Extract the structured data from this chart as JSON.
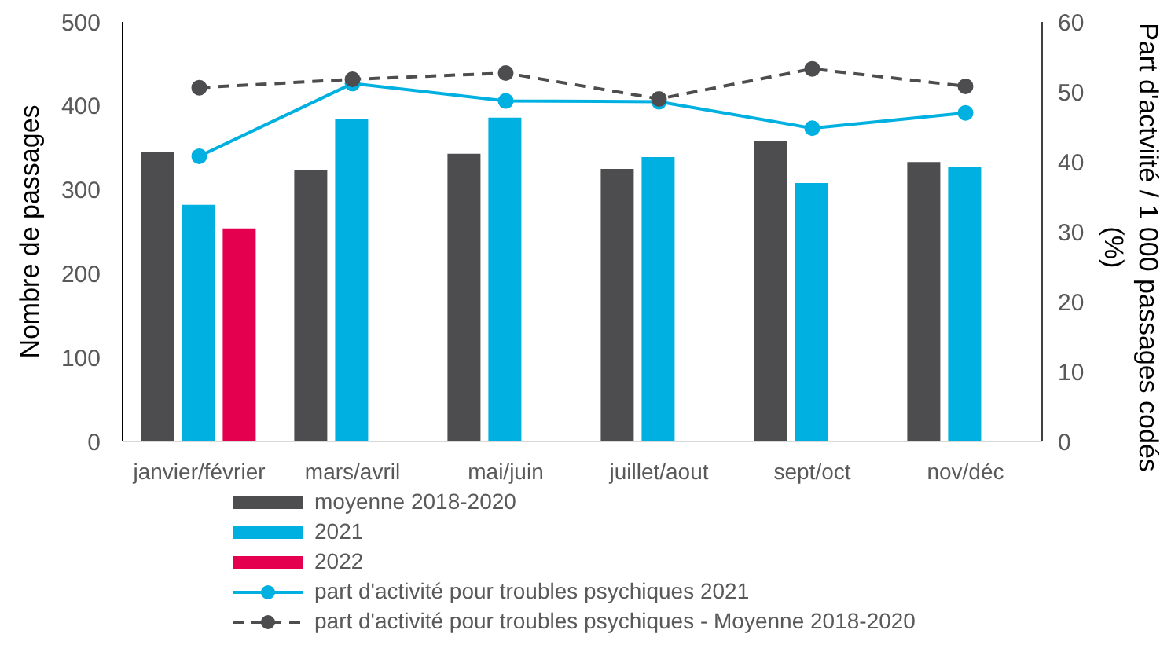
{
  "chart_data": {
    "type": "bar",
    "categories": [
      "janvier/février",
      "mars/avril",
      "mai/juin",
      "juillet/aout",
      "sept/oct",
      "nov/déc"
    ],
    "series": [
      {
        "name": "moyenne 2018-2020",
        "color": "#4d4d4f",
        "values": [
          345,
          324,
          343,
          325,
          358,
          333
        ]
      },
      {
        "name": "2021",
        "color": "#00b0e0",
        "values": [
          282,
          384,
          386,
          339,
          308,
          327
        ]
      },
      {
        "name": "2022",
        "color": "#e5004f",
        "values": [
          254,
          null,
          null,
          null,
          null,
          null
        ]
      },
      {
        "name": "part d'activité pour troubles psychiques 2021",
        "color": "#00b0e0",
        "type": "line",
        "axis": "y2",
        "values": [
          40.8,
          51.2,
          48.7,
          48.6,
          44.8,
          47.0
        ]
      },
      {
        "name": "part d'activité pour troubles psychiques - Moyenne 2018-2020",
        "color": "#4d4d4f",
        "type": "line",
        "axis": "y2",
        "line_style": "dashed",
        "values": [
          50.6,
          51.8,
          52.7,
          49.0,
          53.3,
          50.8
        ]
      }
    ],
    "ylabel": "Nombre de passages",
    "y2label": "Part d'actviité / 1 000 passages codés (%)",
    "ylim": [
      0,
      500
    ],
    "yticks": [
      0,
      100,
      200,
      300,
      400,
      500
    ],
    "y2lim": [
      0,
      60
    ],
    "y2ticks": [
      0,
      10,
      20,
      30,
      40,
      50,
      60
    ],
    "legend": "bottom",
    "marker": "circle",
    "line_style": "solid"
  }
}
